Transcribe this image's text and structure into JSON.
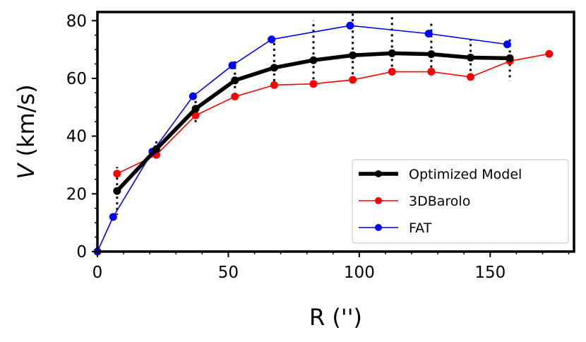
{
  "chart_data": {
    "type": "line",
    "title": "",
    "xlabel": "R ('')",
    "ylabel_italic": "V",
    "ylabel_unit": " (km/s)",
    "xlim": [
      0,
      182
    ],
    "ylim": [
      0,
      83
    ],
    "xticks": [
      0,
      50,
      100,
      150
    ],
    "yticks": [
      0,
      20,
      40,
      60,
      80
    ],
    "legend_position": "lower-right",
    "series": [
      {
        "name": "3DBarolo",
        "color": "#ff0000",
        "x": [
          7.5,
          22.5,
          37.5,
          52.5,
          67.5,
          82.5,
          97.5,
          112.5,
          127.5,
          142.5,
          157.5,
          172.5
        ],
        "y": [
          27,
          33.5,
          47.2,
          53.7,
          57.7,
          58.1,
          59.5,
          62.3,
          62.3,
          60.5,
          66,
          68.5
        ]
      },
      {
        "name": "FAT",
        "color": "#0000ff",
        "x": [
          0,
          6,
          21,
          36.5,
          51.5,
          66.5,
          96.5,
          126.5,
          156.5
        ],
        "y": [
          0,
          12,
          34.6,
          53.8,
          64.5,
          73.5,
          78.3,
          75.5,
          71.8
        ]
      },
      {
        "name": "Optimized Model",
        "color": "#000000",
        "x": [
          7.5,
          22.5,
          37.5,
          52.5,
          67.5,
          82.5,
          97.5,
          112.5,
          127.5,
          142.5,
          157.5
        ],
        "y": [
          21,
          35.5,
          49.5,
          59.3,
          63.7,
          66.3,
          68,
          68.7,
          68.4,
          67.2,
          67
        ],
        "err_low": [
          8.3,
          3.9,
          5.9,
          3.6,
          6.2,
          7.9,
          8.4,
          7.4,
          7.9,
          6.5,
          7.9
        ],
        "err_high": [
          8.3,
          3.9,
          5.5,
          6.9,
          9.3,
          13.8,
          14.8,
          13.4,
          11.5,
          6.4,
          6.5
        ]
      }
    ],
    "legend_order": [
      "Optimized Model",
      "3DBarolo",
      "FAT"
    ]
  }
}
